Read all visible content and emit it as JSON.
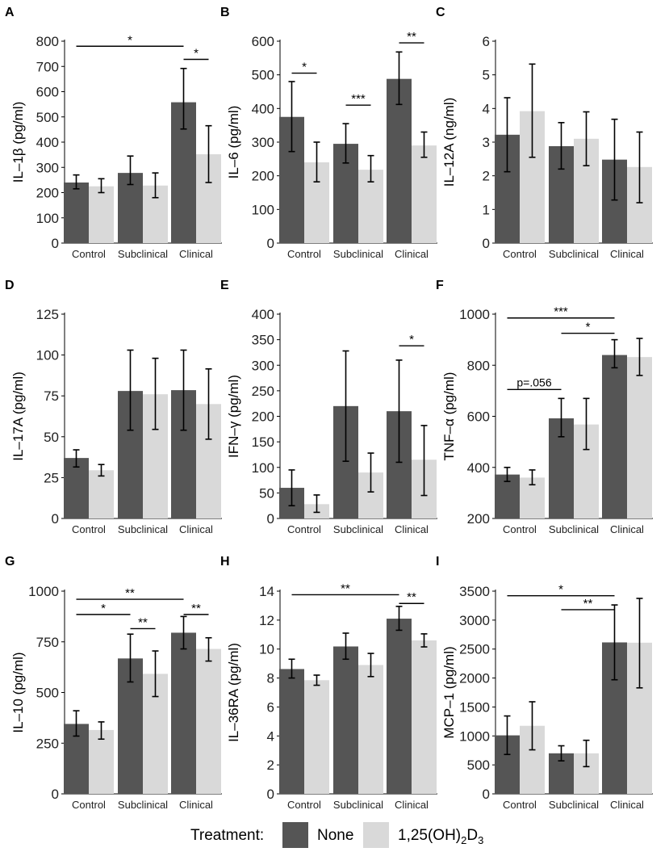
{
  "colors": {
    "none": "#555555",
    "d3": "#d9d9d9",
    "axis": "#000000"
  },
  "legend": {
    "title": "Treatment:",
    "none_label": "None",
    "d3_label_main": "1,25(OH)",
    "d3_label_sub": "2",
    "d3_label_end": "D",
    "d3_label_sub2": "3"
  },
  "chart_data": [
    {
      "type": "bar",
      "panel": "A",
      "ylabel": "IL–1β (pg/ml)",
      "categories": [
        "Control",
        "Subclinical",
        "Clinical"
      ],
      "ylim": [
        0,
        800
      ],
      "yticks": [
        "0",
        "100",
        "200",
        "300",
        "400",
        "500",
        "600",
        "700",
        "800"
      ],
      "ytickvals": [
        0,
        100,
        200,
        300,
        400,
        500,
        600,
        700,
        800
      ],
      "series": [
        {
          "name": "None",
          "values": [
            240,
            278,
            558
          ],
          "err_low": [
            215,
            232,
            452
          ],
          "err_high": [
            270,
            345,
            692
          ]
        },
        {
          "name": "1,25(OH)2D3",
          "values": [
            225,
            228,
            352
          ],
          "err_low": [
            200,
            180,
            240
          ],
          "err_high": [
            255,
            278,
            465
          ]
        }
      ],
      "significance": [
        {
          "label": "*",
          "from": [
            0,
            0
          ],
          "to": [
            2,
            0
          ],
          "y": 780
        },
        {
          "label": "*",
          "from": [
            2,
            0
          ],
          "to": [
            2,
            1
          ],
          "y": 728
        }
      ]
    },
    {
      "type": "bar",
      "panel": "B",
      "ylabel": "IL–6 (pg/ml)",
      "categories": [
        "Control",
        "Subclinical",
        "Clinical"
      ],
      "ylim": [
        0,
        600
      ],
      "yticks": [
        "0",
        "100",
        "200",
        "300",
        "400",
        "500",
        "600"
      ],
      "ytickvals": [
        0,
        100,
        200,
        300,
        400,
        500,
        600
      ],
      "series": [
        {
          "name": "None",
          "values": [
            375,
            295,
            488
          ],
          "err_low": [
            272,
            238,
            412
          ],
          "err_high": [
            480,
            355,
            568
          ]
        },
        {
          "name": "1,25(OH)2D3",
          "values": [
            240,
            218,
            290
          ],
          "err_low": [
            182,
            182,
            255
          ],
          "err_high": [
            300,
            260,
            330
          ]
        }
      ],
      "significance": [
        {
          "label": "*",
          "from": [
            0,
            0
          ],
          "to": [
            0,
            1
          ],
          "y": 505
        },
        {
          "label": "***",
          "from": [
            1,
            0
          ],
          "to": [
            1,
            1
          ],
          "y": 410
        },
        {
          "label": "**",
          "from": [
            2,
            0
          ],
          "to": [
            2,
            1
          ],
          "y": 595
        }
      ]
    },
    {
      "type": "bar",
      "panel": "C",
      "ylabel": "IL–12A (ng/ml)",
      "categories": [
        "Control",
        "Subclinical",
        "Clinical"
      ],
      "ylim": [
        0,
        6
      ],
      "yticks": [
        "0",
        "1",
        "2",
        "3",
        "4",
        "5",
        "6"
      ],
      "ytickvals": [
        0,
        1,
        2,
        3,
        4,
        5,
        6
      ],
      "series": [
        {
          "name": "None",
          "values": [
            3.22,
            2.88,
            2.48
          ],
          "err_low": [
            2.12,
            2.2,
            1.28
          ],
          "err_high": [
            4.32,
            3.58,
            3.68
          ]
        },
        {
          "name": "1,25(OH)2D3",
          "values": [
            3.92,
            3.1,
            2.26
          ],
          "err_low": [
            2.55,
            2.3,
            1.2
          ],
          "err_high": [
            5.32,
            3.9,
            3.3
          ]
        }
      ],
      "significance": []
    },
    {
      "type": "bar",
      "panel": "D",
      "ylabel": "IL–17A (pg/ml)",
      "categories": [
        "Control",
        "Subclinical",
        "Clinical"
      ],
      "ylim": [
        0,
        125
      ],
      "yticks": [
        "0",
        "25",
        "50",
        "75",
        "100",
        "125"
      ],
      "ytickvals": [
        0,
        25,
        50,
        75,
        100,
        125
      ],
      "series": [
        {
          "name": "None",
          "values": [
            37,
            78,
            78.5
          ],
          "err_low": [
            31.5,
            54,
            54
          ],
          "err_high": [
            42,
            103,
            103
          ]
        },
        {
          "name": "1,25(OH)2D3",
          "values": [
            29.5,
            76,
            70
          ],
          "err_low": [
            26,
            54.5,
            48.5
          ],
          "err_high": [
            33,
            98,
            91.5
          ]
        }
      ],
      "significance": []
    },
    {
      "type": "bar",
      "panel": "E",
      "ylabel": "IFN–γ (pg/ml)",
      "categories": [
        "Control",
        "Subclinical",
        "Clinical"
      ],
      "ylim": [
        0,
        400
      ],
      "yticks": [
        "0",
        "50",
        "100",
        "150",
        "200",
        "250",
        "300",
        "350",
        "400"
      ],
      "ytickvals": [
        0,
        50,
        100,
        150,
        200,
        250,
        300,
        350,
        400
      ],
      "series": [
        {
          "name": "None",
          "values": [
            60,
            220,
            210
          ],
          "err_low": [
            25,
            112,
            110
          ],
          "err_high": [
            95,
            328,
            310
          ]
        },
        {
          "name": "1,25(OH)2D3",
          "values": [
            28,
            90,
            115
          ],
          "err_low": [
            12,
            52,
            45
          ],
          "err_high": [
            46,
            128,
            182
          ]
        }
      ],
      "significance": [
        {
          "label": "*",
          "from": [
            2,
            0
          ],
          "to": [
            2,
            1
          ],
          "y": 338
        }
      ]
    },
    {
      "type": "bar",
      "panel": "F",
      "ylabel": "TNF–α (pg/ml)",
      "categories": [
        "Control",
        "Subclinical",
        "Clinical"
      ],
      "ylim": [
        200,
        1000
      ],
      "yticks": [
        "200",
        "400",
        "600",
        "800",
        "1000"
      ],
      "ytickvals": [
        200,
        400,
        600,
        800,
        1000
      ],
      "series": [
        {
          "name": "None",
          "values": [
            372,
            592,
            840
          ],
          "err_low": [
            345,
            520,
            790
          ],
          "err_high": [
            400,
            670,
            900
          ]
        },
        {
          "name": "1,25(OH)2D3",
          "values": [
            360,
            568,
            832
          ],
          "err_low": [
            332,
            470,
            760
          ],
          "err_high": [
            390,
            670,
            905
          ]
        }
      ],
      "significance": [
        {
          "label": "***",
          "from": [
            0,
            0
          ],
          "to": [
            2,
            0
          ],
          "y": 985
        },
        {
          "label": "*",
          "from": [
            1,
            0
          ],
          "to": [
            2,
            0
          ],
          "y": 925
        },
        {
          "label": "p=.056",
          "from": [
            0,
            0
          ],
          "to": [
            1,
            0
          ],
          "y": 705
        }
      ]
    },
    {
      "type": "bar",
      "panel": "G",
      "ylabel": "IL–10 (pg/ml)",
      "categories": [
        "Control",
        "Subclinical",
        "Clinical"
      ],
      "ylim": [
        0,
        1000
      ],
      "yticks": [
        "0",
        "250",
        "500",
        "750",
        "1000"
      ],
      "ytickvals": [
        0,
        250,
        500,
        750,
        1000
      ],
      "series": [
        {
          "name": "None",
          "values": [
            345,
            668,
            795
          ],
          "err_low": [
            285,
            552,
            715
          ],
          "err_high": [
            410,
            788,
            875
          ]
        },
        {
          "name": "1,25(OH)2D3",
          "values": [
            315,
            592,
            715
          ],
          "err_low": [
            270,
            480,
            655
          ],
          "err_high": [
            355,
            705,
            770
          ]
        }
      ],
      "significance": [
        {
          "label": "**",
          "from": [
            0,
            0
          ],
          "to": [
            2,
            0
          ],
          "y": 960
        },
        {
          "label": "*",
          "from": [
            0,
            0
          ],
          "to": [
            1,
            0
          ],
          "y": 885
        },
        {
          "label": "**",
          "from": [
            1,
            0
          ],
          "to": [
            1,
            1
          ],
          "y": 815
        },
        {
          "label": "**",
          "from": [
            2,
            0
          ],
          "to": [
            2,
            1
          ],
          "y": 885
        }
      ]
    },
    {
      "type": "bar",
      "panel": "H",
      "ylabel": "IL–36RA (pg/ml)",
      "categories": [
        "Control",
        "Subclinical",
        "Clinical"
      ],
      "ylim": [
        0,
        14
      ],
      "yticks": [
        "0",
        "2",
        "4",
        "6",
        "8",
        "10",
        "12",
        "14"
      ],
      "ytickvals": [
        0,
        2,
        4,
        6,
        8,
        10,
        12,
        14
      ],
      "series": [
        {
          "name": "None",
          "values": [
            8.62,
            10.18,
            12.1
          ],
          "err_low": [
            8.0,
            9.3,
            11.3
          ],
          "err_high": [
            9.3,
            11.1,
            12.95
          ]
        },
        {
          "name": "1,25(OH)2D3",
          "values": [
            7.85,
            8.9,
            10.6
          ],
          "err_low": [
            7.5,
            8.1,
            10.15
          ],
          "err_high": [
            8.2,
            9.7,
            11.05
          ]
        }
      ],
      "significance": [
        {
          "label": "**",
          "from": [
            0,
            0
          ],
          "to": [
            2,
            0
          ],
          "y": 13.75
        },
        {
          "label": "**",
          "from": [
            2,
            0
          ],
          "to": [
            2,
            1
          ],
          "y": 13.15
        }
      ]
    },
    {
      "type": "bar",
      "panel": "I",
      "ylabel": "MCP–1 (pg/ml)",
      "categories": [
        "Control",
        "Subclinical",
        "Clinical"
      ],
      "ylim": [
        0,
        3500
      ],
      "yticks": [
        "0",
        "500",
        "1000",
        "1500",
        "2000",
        "2500",
        "3000",
        "3500"
      ],
      "ytickvals": [
        0,
        500,
        1000,
        1500,
        2000,
        2500,
        3000,
        3500
      ],
      "series": [
        {
          "name": "None",
          "values": [
            1010,
            700,
            2615
          ],
          "err_low": [
            680,
            570,
            1970
          ],
          "err_high": [
            1345,
            830,
            3262
          ]
        },
        {
          "name": "1,25(OH)2D3",
          "values": [
            1175,
            700,
            2610
          ],
          "err_low": [
            760,
            470,
            1830
          ],
          "err_high": [
            1590,
            925,
            3375
          ]
        }
      ],
      "significance": [
        {
          "label": "*",
          "from": [
            0,
            0
          ],
          "to": [
            2,
            0
          ],
          "y": 3420
        },
        {
          "label": "**",
          "from": [
            1,
            0
          ],
          "to": [
            2,
            0
          ],
          "y": 3180
        }
      ]
    }
  ]
}
